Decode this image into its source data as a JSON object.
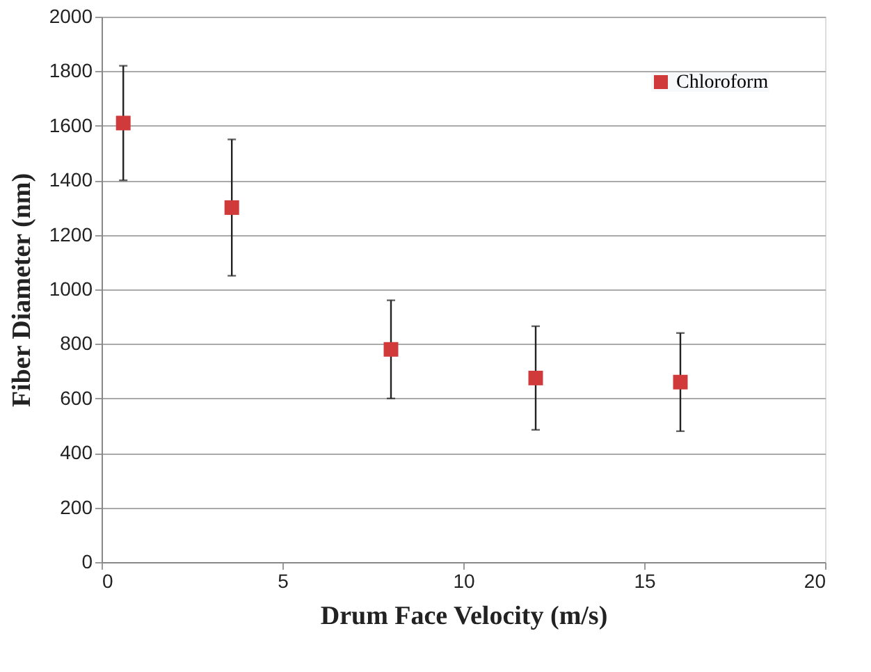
{
  "chart_data": {
    "type": "scatter",
    "xlabel": "Drum Face Velocity (m/s)",
    "ylabel": "Fiber Diameter (nm)",
    "x": [
      0.6,
      3.6,
      8,
      12,
      16
    ],
    "series": [
      {
        "name": "Chloroform",
        "color": "#d03a3a",
        "values": [
          1610,
          1300,
          780,
          675,
          660
        ],
        "errors": [
          210,
          250,
          180,
          190,
          180
        ]
      }
    ],
    "xlim": [
      0,
      20
    ],
    "xticks": [
      0,
      5,
      10,
      15,
      20
    ],
    "ylim": [
      0,
      2000
    ],
    "yticks": [
      0,
      200,
      400,
      600,
      800,
      1000,
      1200,
      1400,
      1600,
      1800,
      2000
    ],
    "grid": "y",
    "legend": "top right",
    "marker": "square"
  }
}
